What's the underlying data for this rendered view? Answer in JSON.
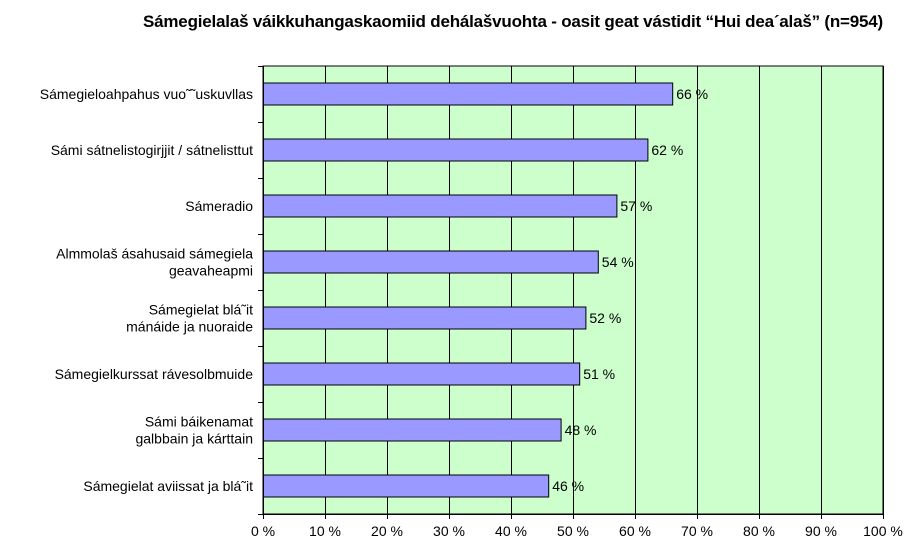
{
  "chart_data": {
    "type": "bar",
    "orientation": "horizontal",
    "title": "Sámegielalaš váikkuhangaskaomiid dehálašvuohta - oasit geat vástidit “Hui dea´alaš” (n=954)",
    "categories": [
      "Sámegieloahpahus vuo˜˜uskuvllas",
      "Sámi sátnelistogirjjit / sátnelisttut",
      "Sámeradio",
      "Almmolaš ásahusaid sámegiela geavaheapmi",
      "Sámegielat blá˜it mánáide ja nuoraide",
      "Sámegielkurssat rávesolbmuide",
      "Sámi báikenamat galbbain ja kárttain",
      "Sámegielat aviissat ja blá˜it"
    ],
    "category_lines": [
      [
        "Sámegieloahpahus vuo˜˜uskuvllas"
      ],
      [
        "Sámi sátnelistogirjjit / sátnelisttut"
      ],
      [
        "Sámeradio"
      ],
      [
        "Almmolaš ásahusaid sámegiela",
        "geavaheapmi"
      ],
      [
        "Sámegielat blá˜it",
        "mánáide ja nuoraide"
      ],
      [
        "Sámegielkurssat rávesolbmuide"
      ],
      [
        "Sámi báikenamat",
        "galbbain ja kárttain"
      ],
      [
        "Sámegielat aviissat ja blá˜it"
      ]
    ],
    "values": [
      66,
      62,
      57,
      54,
      52,
      51,
      48,
      46
    ],
    "value_labels": [
      "66 %",
      "62 %",
      "57 %",
      "54 %",
      "52 %",
      "51 %",
      "48 %",
      "46 %"
    ],
    "xlim": [
      0,
      100
    ],
    "x_ticks": [
      0,
      10,
      20,
      30,
      40,
      50,
      60,
      70,
      80,
      90,
      100
    ],
    "x_tick_labels": [
      "0 %",
      "10 %",
      "20 %",
      "30 %",
      "40 %",
      "50 %",
      "60 %",
      "70 %",
      "80 %",
      "90 %",
      "100 %"
    ],
    "xlabel": "",
    "ylabel": "",
    "grid": true,
    "legend": "none",
    "colors": {
      "plot_background": "#ccffcc",
      "bar_fill": "#9999ff",
      "bar_stroke": "#000000",
      "grid": "#000000"
    }
  }
}
